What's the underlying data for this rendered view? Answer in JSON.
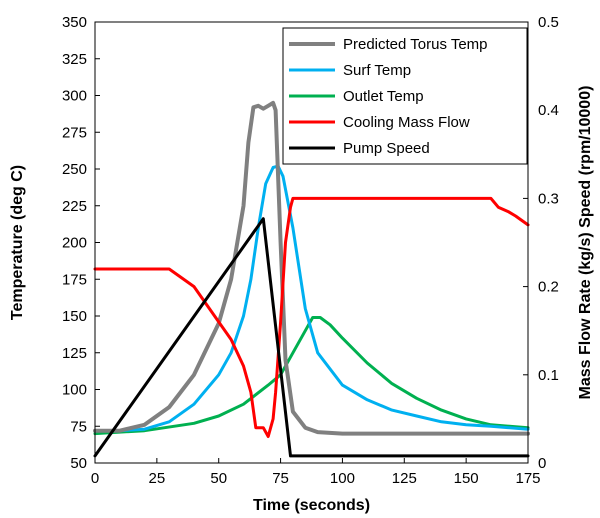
{
  "chart_data": {
    "type": "line",
    "xlabel": "Time (seconds)",
    "ylabel": "Temperature (deg C)",
    "y2label": "Mass Flow Rate (kg/s) Speed (rpm/10000)",
    "xlim": [
      0,
      175
    ],
    "ylim": [
      50,
      350
    ],
    "y2lim": [
      0,
      0.5
    ],
    "x_ticks": [
      "0",
      "25",
      "50",
      "75",
      "100",
      "125",
      "150",
      "175"
    ],
    "y_ticks": [
      "50",
      "75",
      "100",
      "125",
      "150",
      "175",
      "200",
      "225",
      "250",
      "275",
      "300",
      "325",
      "350"
    ],
    "y2_ticks": [
      "0",
      "0.1",
      "0.2",
      "0.3",
      "0.4",
      "0.5"
    ],
    "grid": false,
    "legend_position": "top-right",
    "series": [
      {
        "name": "Predicted Torus Temp",
        "axis": "left",
        "color": "#808080",
        "points": [
          [
            0,
            72
          ],
          [
            10,
            72
          ],
          [
            20,
            76
          ],
          [
            30,
            88
          ],
          [
            40,
            110
          ],
          [
            50,
            145
          ],
          [
            55,
            175
          ],
          [
            60,
            225
          ],
          [
            62,
            268
          ],
          [
            64,
            292
          ],
          [
            66,
            293
          ],
          [
            68,
            291
          ],
          [
            70,
            293
          ],
          [
            72,
            295
          ],
          [
            73,
            290
          ],
          [
            75,
            200
          ],
          [
            77,
            120
          ],
          [
            80,
            85
          ],
          [
            85,
            74
          ],
          [
            90,
            71
          ],
          [
            100,
            70
          ],
          [
            125,
            70
          ],
          [
            150,
            70
          ],
          [
            175,
            70
          ]
        ]
      },
      {
        "name": "Surf Temp",
        "axis": "left",
        "color": "#00B0F0",
        "points": [
          [
            0,
            72
          ],
          [
            10,
            72
          ],
          [
            20,
            73
          ],
          [
            30,
            78
          ],
          [
            40,
            90
          ],
          [
            50,
            110
          ],
          [
            55,
            125
          ],
          [
            60,
            150
          ],
          [
            63,
            175
          ],
          [
            66,
            210
          ],
          [
            69,
            240
          ],
          [
            72,
            251
          ],
          [
            74,
            252
          ],
          [
            76,
            245
          ],
          [
            80,
            210
          ],
          [
            85,
            155
          ],
          [
            90,
            125
          ],
          [
            100,
            103
          ],
          [
            110,
            93
          ],
          [
            120,
            86
          ],
          [
            130,
            82
          ],
          [
            140,
            78
          ],
          [
            150,
            76
          ],
          [
            160,
            75
          ],
          [
            175,
            73
          ]
        ]
      },
      {
        "name": "Outlet Temp",
        "axis": "left",
        "color": "#00B050",
        "points": [
          [
            0,
            70
          ],
          [
            20,
            72
          ],
          [
            40,
            77
          ],
          [
            50,
            82
          ],
          [
            60,
            90
          ],
          [
            70,
            103
          ],
          [
            75,
            110
          ],
          [
            80,
            125
          ],
          [
            85,
            140
          ],
          [
            88,
            149
          ],
          [
            91,
            149
          ],
          [
            95,
            144
          ],
          [
            100,
            135
          ],
          [
            110,
            118
          ],
          [
            120,
            104
          ],
          [
            130,
            94
          ],
          [
            140,
            86
          ],
          [
            150,
            80
          ],
          [
            160,
            76
          ],
          [
            175,
            74
          ]
        ]
      },
      {
        "name": "Cooling Mass Flow",
        "axis": "right",
        "color": "#FF0000",
        "points": [
          [
            0,
            0.22
          ],
          [
            30,
            0.22
          ],
          [
            40,
            0.2
          ],
          [
            50,
            0.16
          ],
          [
            55,
            0.14
          ],
          [
            60,
            0.11
          ],
          [
            63,
            0.08
          ],
          [
            65,
            0.04
          ],
          [
            68,
            0.04
          ],
          [
            70,
            0.03
          ],
          [
            72,
            0.05
          ],
          [
            73,
            0.08
          ],
          [
            75,
            0.16
          ],
          [
            77,
            0.25
          ],
          [
            79,
            0.29
          ],
          [
            80,
            0.3
          ],
          [
            120,
            0.3
          ],
          [
            160,
            0.3
          ],
          [
            163,
            0.29
          ],
          [
            167,
            0.285
          ],
          [
            170,
            0.28
          ],
          [
            175,
            0.27
          ]
        ]
      },
      {
        "name": "Pump Speed",
        "axis": "right",
        "color": "#000000",
        "points": [
          [
            0,
            0.008
          ],
          [
            68,
            0.277
          ],
          [
            79,
            0.008
          ],
          [
            175,
            0.008
          ]
        ]
      }
    ]
  }
}
